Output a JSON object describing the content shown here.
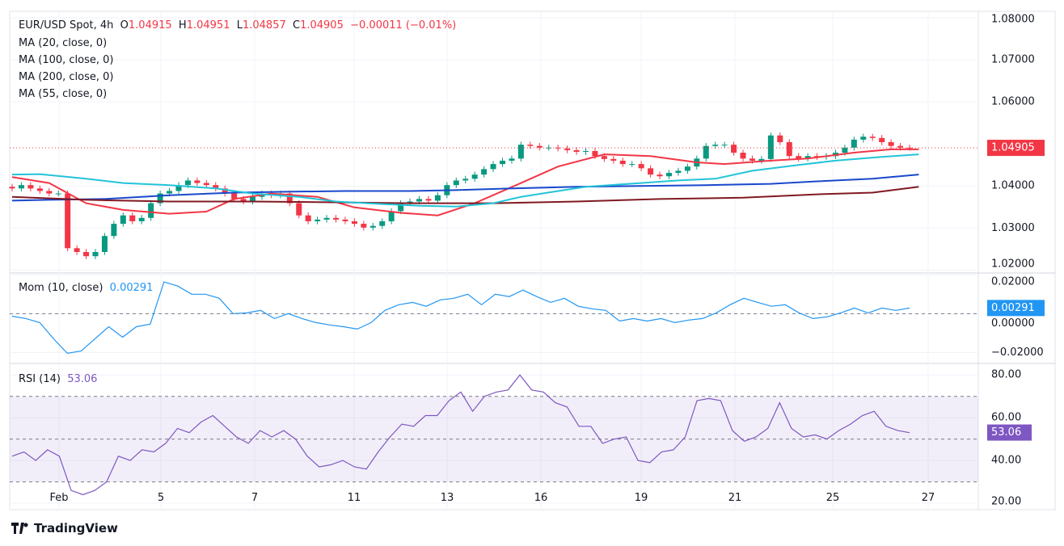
{
  "chart_data": [
    {
      "type": "candlestick",
      "title": "EUR/USD Spot, 4h",
      "ohlc_header": {
        "O": "1.04915",
        "H": "1.04951",
        "L": "1.04857",
        "C": "1.04905",
        "change": "−0.00011 (−0.01%)"
      },
      "ylim": [
        1.0195,
        1.0815
      ],
      "y_ticks": [
        "1.08000",
        "1.07000",
        "1.06000",
        "1.04000",
        "1.03000",
        "1.02000"
      ],
      "x_ticks": [
        "Feb",
        "5",
        "7",
        "11",
        "13",
        "16",
        "19",
        "21",
        "25",
        "27"
      ],
      "last_price_label": "1.04905",
      "closes": [
        1.0394,
        1.0402,
        1.0394,
        1.0388,
        1.0382,
        1.0382,
        1.0252,
        1.0243,
        1.0233,
        1.0243,
        1.0281,
        1.031,
        1.033,
        1.0316,
        1.0324,
        1.0359,
        1.0382,
        1.0388,
        1.0402,
        1.0413,
        1.0407,
        1.0402,
        1.0394,
        1.0382,
        1.0369,
        1.0363,
        1.0374,
        1.0382,
        1.0378,
        1.0382,
        1.0359,
        1.033,
        1.0316,
        1.032,
        1.0324,
        1.032,
        1.0316,
        1.031,
        1.0301,
        1.0305,
        1.0316,
        1.034,
        1.0359,
        1.0363,
        1.0369,
        1.0365,
        1.0378,
        1.0402,
        1.0413,
        1.0417,
        1.0427,
        1.044,
        1.0452,
        1.046,
        1.0465,
        1.0498,
        1.0495,
        1.0491,
        1.0491,
        1.0489,
        1.0485,
        1.0481,
        1.0483,
        1.0471,
        1.0464,
        1.046,
        1.0452,
        1.0452,
        1.0442,
        1.0427,
        1.0423,
        1.0431,
        1.0436,
        1.0446,
        1.0465,
        1.0495,
        1.0498,
        1.0498,
        1.0479,
        1.0465,
        1.046,
        1.0464,
        1.052,
        1.0504,
        1.0471,
        1.0465,
        1.0471,
        1.0469,
        1.0471,
        1.0479,
        1.0491,
        1.051,
        1.0517,
        1.0514,
        1.0504,
        1.0495,
        1.0491,
        1.04905
      ],
      "colors": {
        "up": "#089981",
        "down": "#f23645"
      },
      "series": [
        {
          "name": "MA (20, close, 0)",
          "color": "#f23645",
          "points": [
            [
              0,
              1.0421
            ],
            [
              4,
              1.0407
            ],
            [
              8,
              1.0359
            ],
            [
              12,
              1.0343
            ],
            [
              17,
              1.0334
            ],
            [
              21,
              1.0339
            ],
            [
              24,
              1.0369
            ],
            [
              28,
              1.0382
            ],
            [
              33,
              1.0374
            ],
            [
              37,
              1.0349
            ],
            [
              42,
              1.0336
            ],
            [
              46,
              1.033
            ],
            [
              50,
              1.0359
            ],
            [
              55,
              1.0407
            ],
            [
              59,
              1.0446
            ],
            [
              64,
              1.0475
            ],
            [
              69,
              1.0471
            ],
            [
              74,
              1.0456
            ],
            [
              77,
              1.0452
            ],
            [
              82,
              1.046
            ],
            [
              86,
              1.0465
            ],
            [
              91,
              1.0479
            ],
            [
              95,
              1.0487
            ],
            [
              98,
              1.0487
            ]
          ]
        },
        {
          "name": "MA (100, close, 0)",
          "color": "#1848cc",
          "points": [
            [
              0,
              1.0365
            ],
            [
              4,
              1.0367
            ],
            [
              10,
              1.0369
            ],
            [
              17,
              1.0378
            ],
            [
              24,
              1.0384
            ],
            [
              29,
              1.0386
            ],
            [
              36,
              1.0388
            ],
            [
              43,
              1.0388
            ],
            [
              48,
              1.039
            ],
            [
              54,
              1.0394
            ],
            [
              61,
              1.0398
            ],
            [
              68,
              1.04
            ],
            [
              75,
              1.0402
            ],
            [
              82,
              1.0405
            ],
            [
              87,
              1.0411
            ],
            [
              93,
              1.0417
            ],
            [
              98,
              1.0427
            ]
          ]
        },
        {
          "name": "MA (200, close, 0)",
          "color": "#801922",
          "points": [
            [
              0,
              1.0374
            ],
            [
              8,
              1.0367
            ],
            [
              17,
              1.0363
            ],
            [
              26,
              1.0363
            ],
            [
              35,
              1.0361
            ],
            [
              43,
              1.0359
            ],
            [
              52,
              1.0359
            ],
            [
              61,
              1.0363
            ],
            [
              70,
              1.0369
            ],
            [
              79,
              1.0372
            ],
            [
              87,
              1.038
            ],
            [
              93,
              1.0384
            ],
            [
              98,
              1.0398
            ]
          ]
        },
        {
          "name": "MA (55, close, 0)",
          "color": "#22c4d8",
          "points": [
            [
              0,
              1.0427
            ],
            [
              3,
              1.0428
            ],
            [
              8,
              1.0417
            ],
            [
              12,
              1.0407
            ],
            [
              17,
              1.0402
            ],
            [
              22,
              1.0394
            ],
            [
              26,
              1.0382
            ],
            [
              31,
              1.0374
            ],
            [
              35,
              1.0363
            ],
            [
              40,
              1.0357
            ],
            [
              44,
              1.0353
            ],
            [
              48,
              1.0351
            ],
            [
              52,
              1.0359
            ],
            [
              55,
              1.0374
            ],
            [
              59,
              1.0388
            ],
            [
              62,
              1.0398
            ],
            [
              68,
              1.0407
            ],
            [
              72,
              1.0413
            ],
            [
              76,
              1.0417
            ],
            [
              80,
              1.0436
            ],
            [
              85,
              1.045
            ],
            [
              89,
              1.046
            ],
            [
              94,
              1.0469
            ],
            [
              98,
              1.0475
            ]
          ]
        }
      ]
    },
    {
      "type": "line",
      "title": "Mom (10, close)",
      "value_label": "0.00291",
      "ylim": [
        -0.0252,
        0.0205
      ],
      "y_ticks": [
        "0.02000",
        "0.00000",
        "-0.02000"
      ],
      "color": "#2196f3",
      "values": [
        -0.0013,
        -0.0025,
        -0.0046,
        -0.0129,
        -0.0204,
        -0.0192,
        -0.0129,
        -0.0067,
        -0.0121,
        -0.0067,
        -0.0054,
        0.0163,
        0.0142,
        0.01,
        0.01,
        0.0079,
        0.0,
        0.0004,
        0.0017,
        -0.0025,
        0.0,
        -0.0025,
        -0.0046,
        -0.0058,
        -0.0067,
        -0.0079,
        -0.0046,
        0.0017,
        0.0046,
        0.0058,
        0.0038,
        0.0071,
        0.0079,
        0.01,
        0.0046,
        0.01,
        0.0088,
        0.0121,
        0.0088,
        0.0058,
        0.0079,
        0.0038,
        0.0025,
        0.0017,
        -0.0038,
        -0.0025,
        -0.0038,
        -0.0025,
        -0.0046,
        -0.0033,
        -0.0025,
        0.0004,
        0.0046,
        0.0079,
        0.0058,
        0.0038,
        0.0046,
        0.0004,
        -0.0025,
        -0.0017,
        0.0004,
        0.0029,
        0.0004,
        0.0029,
        0.0017,
        0.0029
      ],
      "zero_line": 0
    },
    {
      "type": "line",
      "title": "RSI (14)",
      "value_label": "53.06",
      "ylim": [
        17,
        85
      ],
      "y_ticks": [
        "80.00",
        "60.00",
        "40.00",
        "20.00"
      ],
      "color": "#7e57c2",
      "band": [
        30,
        70
      ],
      "levels": [
        70,
        50,
        30
      ],
      "values": [
        42,
        44,
        40,
        45,
        42,
        26,
        24,
        26,
        30,
        42,
        40,
        45,
        44,
        48,
        55,
        53,
        58,
        61,
        56,
        51,
        48,
        54,
        51,
        54,
        50,
        42,
        37,
        38,
        40,
        37,
        36,
        44,
        51,
        57,
        56,
        61,
        61,
        68,
        72,
        63,
        70,
        72,
        73,
        80,
        73,
        72,
        67,
        65,
        56,
        56,
        48,
        50,
        51,
        40,
        39,
        44,
        45,
        51,
        68,
        69,
        68,
        54,
        49,
        51,
        55,
        67,
        55,
        51,
        52,
        50,
        54,
        57,
        61,
        63,
        56,
        54,
        53
      ]
    }
  ],
  "branding": {
    "logo_text": "TradingView"
  }
}
